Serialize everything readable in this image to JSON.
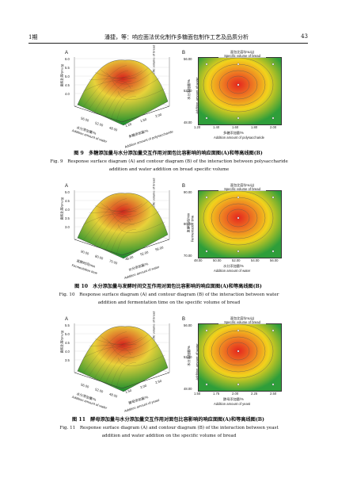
{
  "header": {
    "issue": "1期",
    "running_title": "潘捷，等：响应面法优化制作多糖面包制作工艺及品质分析",
    "page_number": "43"
  },
  "figures": [
    {
      "surface": {
        "letter": "A",
        "z_label": "面包比容/(mL/g)",
        "z_label_en": "Specific volume of bread",
        "z_ticks": [
          "6.0",
          "5.5",
          "5.0",
          "4.5",
          "4.0"
        ],
        "left_axis": "水分添加量/%",
        "left_axis_en": "Addition amount of water",
        "left_ticks": [
          "56.00",
          "52.00",
          "48.00"
        ],
        "right_axis": "多糖添加量/%",
        "right_axis_en": "Addition amount of polysaccharide",
        "right_ticks": [
          "1.20",
          "1.60",
          "2.00"
        ]
      },
      "contour": {
        "letter": "B",
        "title": "面包比容/(mL/g)",
        "title_en": "Specific volume of bread",
        "y_label": "水分添加量/%",
        "y_label_en": "Addition amount of water",
        "y_ticks": [
          "56.00",
          "52.00",
          "48.00"
        ],
        "x_ticks": [
          "1.20",
          "1.40",
          "1.60",
          "1.80",
          "2.00"
        ],
        "x_label": "多糖添加量/%",
        "x_label_en": "Addition amount of polysaccharide"
      },
      "caption_cn": "图 9　多糖添加量与水分添加量交互作用对面包比容影响的响应面图(A)和等高线图(B)",
      "caption_en_1": "Fig. 9　Response surface diagram (A) and contour diagram (B) of the interaction between polysaccharide",
      "caption_en_2": "addition and water addition on bread specific volume"
    },
    {
      "surface": {
        "letter": "A",
        "z_label": "面包比容/(mL/g)",
        "z_label_en": "Specific volume of bread",
        "z_ticks": [
          "5.0",
          "4.5",
          "4.0",
          "3.5",
          "3.0"
        ],
        "left_axis": "发酵时间/min",
        "left_axis_en": "Fermentation time",
        "left_ticks": [
          "90.00",
          "80.00",
          "70.00"
        ],
        "right_axis": "水分添加量/%",
        "right_axis_en": "Addition amount of water",
        "right_ticks": [
          "48.00",
          "52.00",
          "56.00"
        ]
      },
      "contour": {
        "letter": "B",
        "title": "面包比容/(mL/g)",
        "title_en": "Specific volume of bread",
        "y_label": "发酵时间/min",
        "y_label_en": "Fermentation time",
        "y_ticks": [
          "90.00",
          "80.00",
          "70.00"
        ],
        "x_ticks": [
          "48.00",
          "50.00",
          "52.00",
          "54.00",
          "56.00"
        ],
        "x_label": "水分添加量/%",
        "x_label_en": "Addition amount of water"
      },
      "caption_cn": "图 10　水分添加量与发酵时间交互作用对面包比容影响的响应面图(A)和等高线图(B)",
      "caption_en_1": "Fig. 10　Response surface diagram (A) and contour diagram (B) of the interaction between water",
      "caption_en_2": "addition and fermentation time on the specific volume of bread"
    },
    {
      "surface": {
        "letter": "A",
        "z_label": "面包比容/(mL/g)",
        "z_label_en": "Specific volume of bread",
        "z_ticks": [
          "5.5",
          "5.0",
          "4.5",
          "4.0",
          "3.5"
        ],
        "left_axis": "水分添加量/%",
        "left_axis_en": "Addition amount of water",
        "left_ticks": [
          "56.00",
          "52.00",
          "48.00"
        ],
        "right_axis": "酵母添加量/%",
        "right_axis_en": "Addition amount of yeast",
        "right_ticks": [
          "1.50",
          "2.00",
          "2.50"
        ]
      },
      "contour": {
        "letter": "B",
        "title": "面包比容/(mL/g)",
        "title_en": "Specific volume of bread",
        "y_label": "水分添加量/%",
        "y_label_en": "Addition amount of water",
        "y_ticks": [
          "56.00",
          "52.00",
          "48.00"
        ],
        "x_ticks": [
          "1.50",
          "1.75",
          "2.00",
          "2.25",
          "2.50"
        ],
        "x_label": "酵母添加量/%",
        "x_label_en": "Addition amount of yeast"
      },
      "caption_cn": "图 11　酵母添加量与水分添加量交互作用对面包比容影响的响应面图(A)和等高线图(B)",
      "caption_en_1": "Fig. 11　Response surface diagram (A) and contour diagram (B) of the interaction between yeast",
      "caption_en_2": "addition and water addition on the specific volume of bread"
    }
  ],
  "colors": {
    "contour_outer": "#2e9e3a",
    "contour_mid": "#f2d21c",
    "contour_inner": "#e5261e",
    "surface_peak": "#d8241c",
    "surface_low": "#1f8f2e"
  }
}
